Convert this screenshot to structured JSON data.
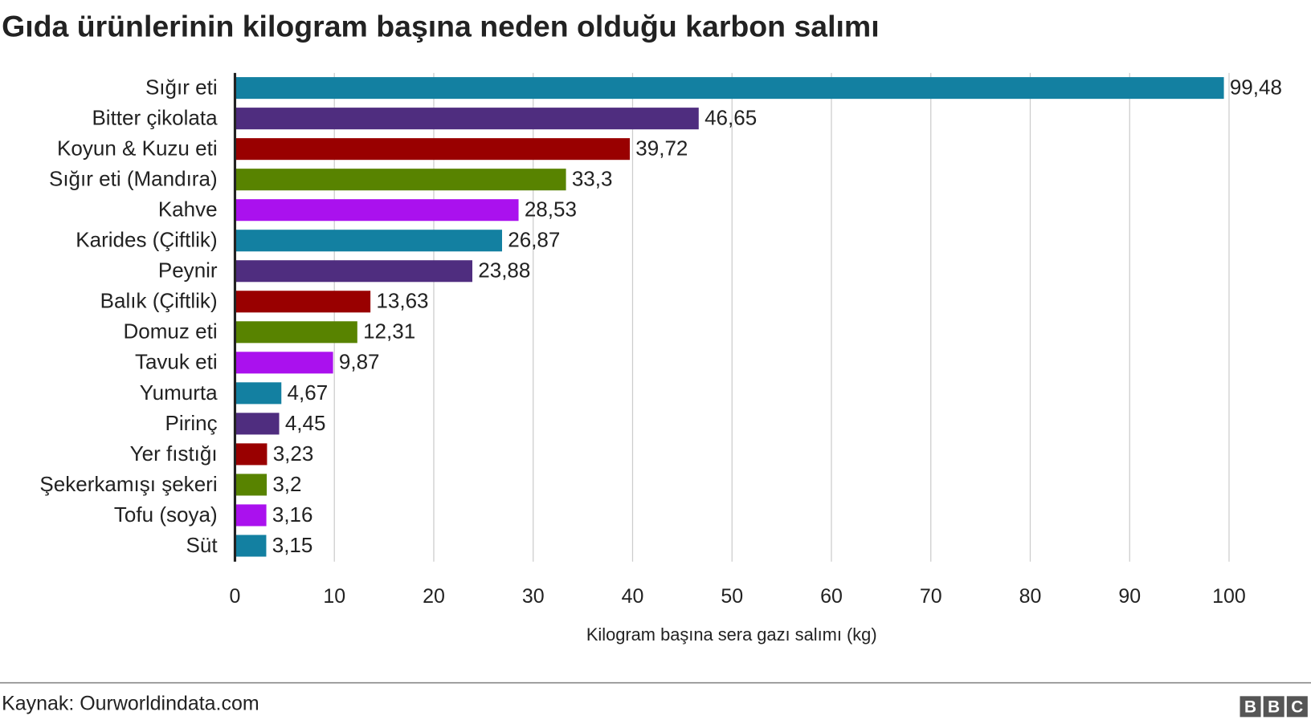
{
  "chart_data": {
    "type": "barh",
    "title": "Gıda ürünlerinin kilogram başına neden olduğu karbon salımı",
    "categories": [
      "Sığır eti",
      "Bitter çikolata",
      "Koyun & Kuzu eti",
      "Sığır eti (Mandıra)",
      "Kahve",
      "Karides (Çiftlik)",
      "Peynir",
      "Balık (Çiftlik)",
      "Domuz eti",
      "Tavuk eti",
      "Yumurta",
      "Pirinç",
      "Yer fıstığı",
      "Şekerkamışı şekeri",
      "Tofu (soya)",
      "Süt"
    ],
    "values": [
      99.48,
      46.65,
      39.72,
      33.3,
      28.53,
      26.87,
      23.88,
      13.63,
      12.31,
      9.87,
      4.67,
      4.45,
      3.23,
      3.2,
      3.16,
      3.15
    ],
    "value_labels": [
      "99,48",
      "46,65",
      "39,72",
      "33,3",
      "28,53",
      "26,87",
      "23,88",
      "13,63",
      "12,31",
      "9,87",
      "4,67",
      "4,45",
      "3,23",
      "3,2",
      "3,16",
      "3,15"
    ],
    "colors": [
      "#1380A1",
      "#4f2d7f",
      "#990000",
      "#588300",
      "#aa11ee",
      "#1380A1",
      "#4f2d7f",
      "#990000",
      "#588300",
      "#aa11ee",
      "#1380A1",
      "#4f2d7f",
      "#990000",
      "#588300",
      "#aa11ee",
      "#1380A1"
    ],
    "xlim": [
      0,
      100
    ],
    "xticks": [
      0,
      10,
      20,
      30,
      40,
      50,
      60,
      70,
      80,
      90,
      100
    ],
    "xlabel": "Kilogram başına sera gazı salımı (kg)",
    "grid": true,
    "source": "Kaynak: Ourworldindata.com",
    "logo": [
      "B",
      "B",
      "C"
    ]
  }
}
